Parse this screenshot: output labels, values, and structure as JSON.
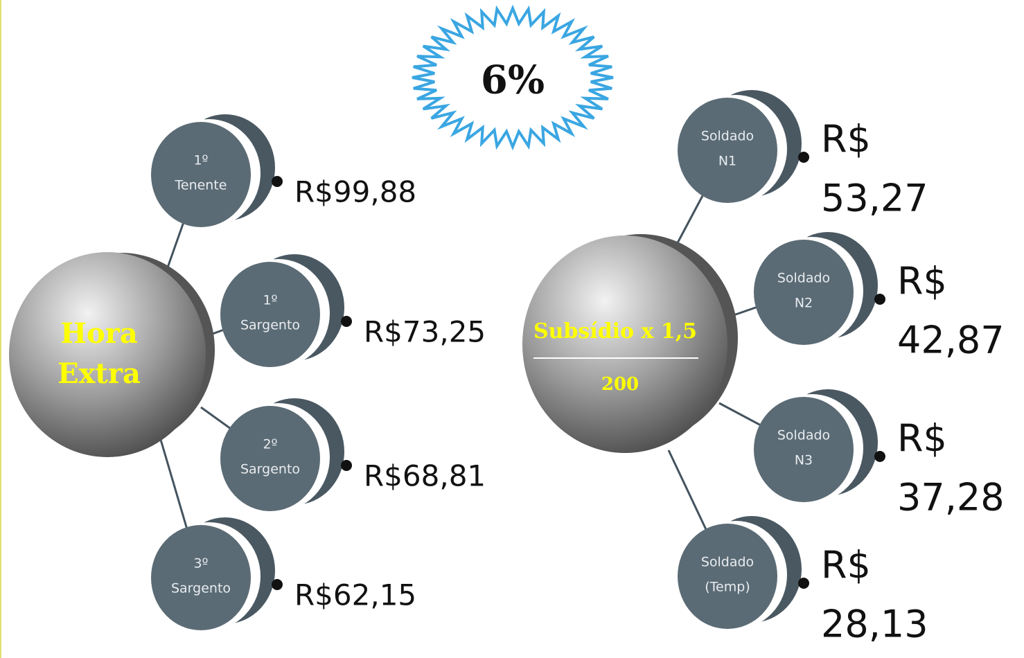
{
  "badge": "6%",
  "left_hub": {
    "label": [
      "Hora",
      "Extra"
    ]
  },
  "left_nodes": [
    {
      "label": [
        "1º",
        "Tenente"
      ],
      "value": [
        "R$99,88"
      ]
    },
    {
      "label": [
        "1º",
        "Sargento"
      ],
      "value": [
        "R$73,25"
      ]
    },
    {
      "label": [
        "2º",
        "Sargento"
      ],
      "value": [
        "R$68,81"
      ]
    },
    {
      "label": [
        "3º",
        "Sargento"
      ],
      "value": [
        "R$62,15"
      ]
    }
  ],
  "right_hub": {
    "numerator": "Subsídio x 1,5",
    "denominator": "200"
  },
  "right_nodes": [
    {
      "label": [
        "Soldado",
        "N1"
      ],
      "value": [
        "R$",
        "53,27"
      ]
    },
    {
      "label": [
        "Soldado",
        "N2"
      ],
      "value": [
        "R$",
        "42,87"
      ]
    },
    {
      "label": [
        "Soldado",
        "N3"
      ],
      "value": [
        "R$",
        "37,28"
      ]
    },
    {
      "label": [
        "Soldado",
        "(Temp)"
      ],
      "value": [
        "R$",
        "28,13"
      ]
    }
  ]
}
